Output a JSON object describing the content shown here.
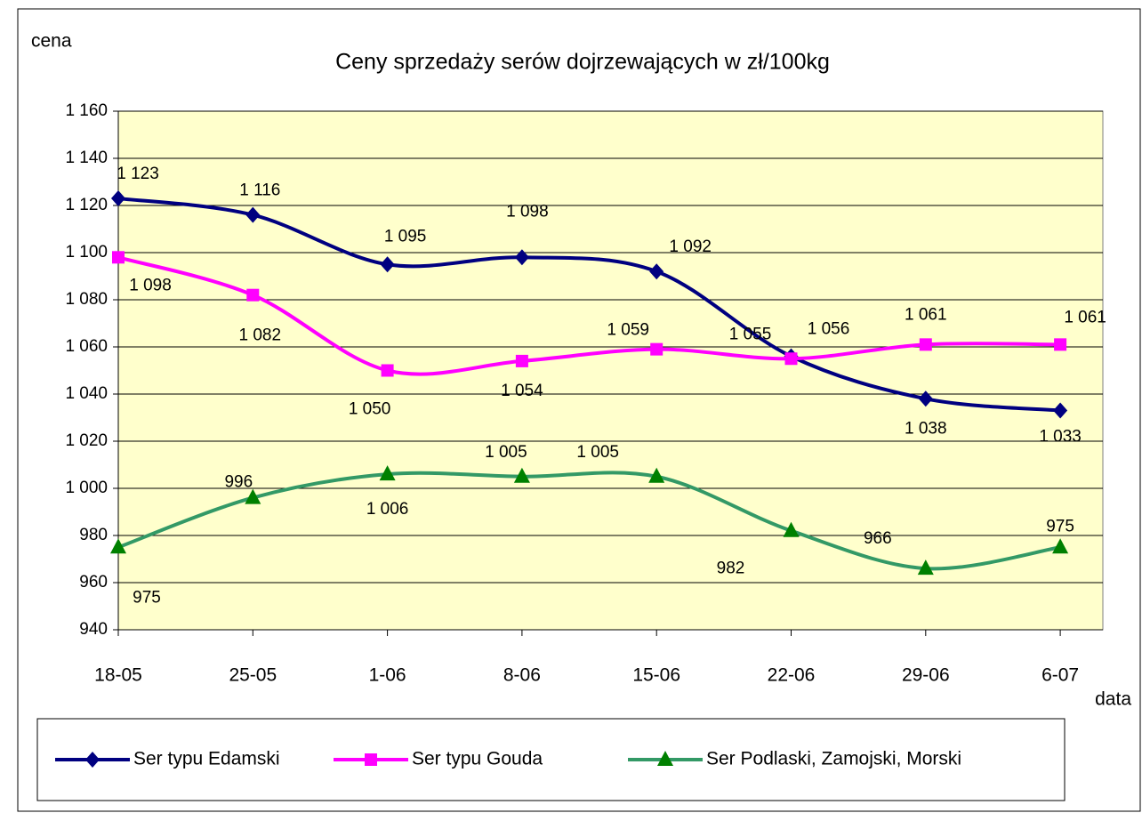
{
  "chart_data": {
    "type": "line",
    "title": "Ceny sprzedaży serów dojrzewających w zł/100kg",
    "y_label": "cena",
    "x_label": "data",
    "categories": [
      "18-05",
      "25-05",
      "1-06",
      "8-06",
      "15-06",
      "22-06",
      "29-06",
      "6-07"
    ],
    "series": [
      {
        "name": "Ser typu Edamski",
        "color": "#000080",
        "marker": "diamond",
        "values": [
          1123,
          1116,
          1095,
          1098,
          1092,
          1056,
          1038,
          1033
        ],
        "value_labels": [
          "1 123",
          "1 116",
          "1 095",
          "1 098",
          "1 092",
          "1 056",
          "1 038",
          "1 033"
        ]
      },
      {
        "name": "Ser typu Gouda",
        "color": "#ff00ff",
        "marker": "square",
        "values": [
          1098,
          1082,
          1050,
          1054,
          1059,
          1055,
          1061,
          1061
        ],
        "value_labels": [
          "1 098",
          "1 082",
          "1 050",
          "1 054",
          "1 059",
          "1 055",
          "1 061",
          "1 061"
        ]
      },
      {
        "name": "Ser Podlaski, Zamojski, Morski",
        "color": "#339966",
        "marker": "triangle",
        "values": [
          975,
          996,
          1006,
          1005,
          1005,
          982,
          966,
          975
        ],
        "value_labels": [
          "975",
          "996",
          "1 006",
          "1 005",
          "1 005",
          "982",
          "966",
          "975"
        ]
      }
    ],
    "ylim": [
      940,
      1160
    ],
    "yticks": [
      940,
      960,
      980,
      {
        "value": 1000,
        "label": "1 000"
      },
      {
        "value": 1020,
        "label": "1 020"
      },
      {
        "value": 1040,
        "label": "1 040"
      },
      {
        "value": 1060,
        "label": "1 060"
      },
      {
        "value": 1080,
        "label": "1 080"
      },
      {
        "value": 1100,
        "label": "1 100"
      },
      {
        "value": 1120,
        "label": "1 120"
      },
      {
        "value": 1140,
        "label": "1 140"
      },
      {
        "value": 1160,
        "label": "1 160"
      }
    ],
    "grid": true,
    "plot_background": "#ffffcc",
    "legend": "bottom"
  }
}
